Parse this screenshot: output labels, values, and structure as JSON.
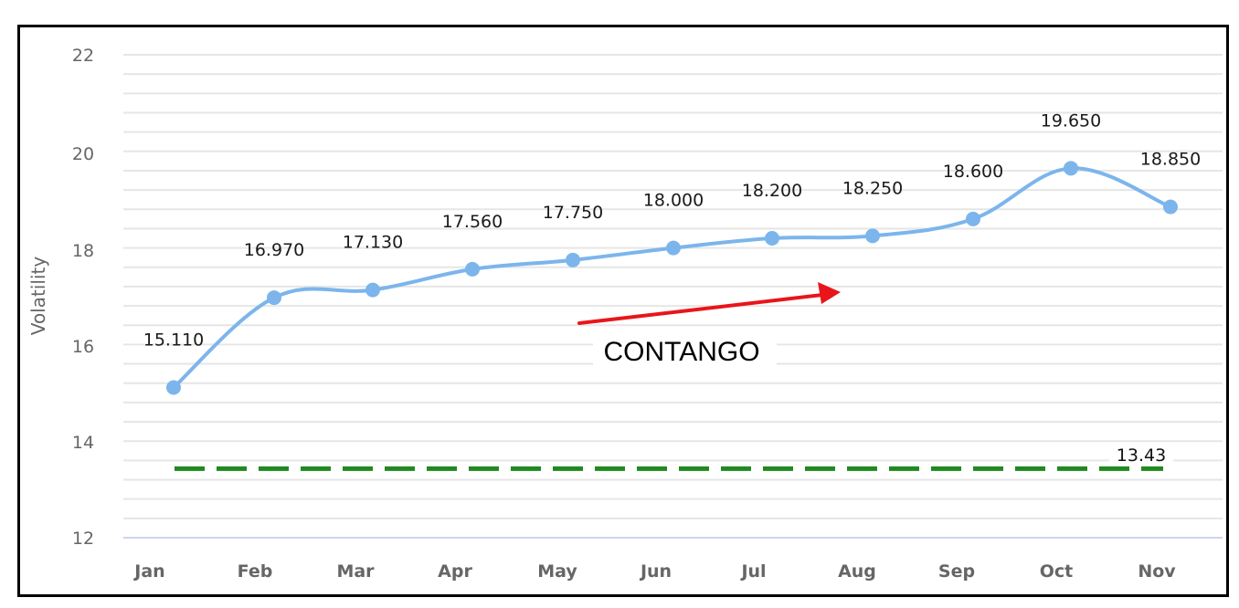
{
  "chart_data": {
    "type": "line",
    "title": "",
    "xlabel": "",
    "ylabel": "Volatility",
    "categories": [
      "Jan",
      "Feb",
      "Mar",
      "Apr",
      "May",
      "Jun",
      "Jul",
      "Aug",
      "Sep",
      "Oct",
      "Nov"
    ],
    "series": [
      {
        "name": "Volatility",
        "values": [
          15.11,
          16.97,
          17.13,
          17.56,
          17.75,
          18.0,
          18.2,
          18.25,
          18.6,
          19.65,
          18.85
        ],
        "data_labels": [
          "15.110",
          "16.970",
          "17.130",
          "17.560",
          "17.750",
          "18.000",
          "18.200",
          "18.250",
          "18.600",
          "19.650",
          "18.850"
        ],
        "color": "#7cb5ec",
        "smooth": true,
        "markers": true
      }
    ],
    "reference_lines": [
      {
        "value": 13.43,
        "label": "13.43",
        "color": "#1f8a1f",
        "style": "dashed"
      }
    ],
    "annotations": [
      {
        "text": "CONTANGO",
        "type": "text-box"
      },
      {
        "type": "arrow",
        "color": "#e8151b",
        "direction": "up-right"
      }
    ],
    "ylim": [
      12,
      22
    ],
    "yticks": [
      12,
      14,
      16,
      18,
      20,
      22
    ],
    "grid": true,
    "grid_step": 0.4,
    "legend": "none"
  },
  "axis": {
    "y_title": "Volatility",
    "y_ticks": [
      "22",
      "20",
      "18",
      "16",
      "14",
      "12"
    ],
    "x_ticks": [
      "Jan",
      "Feb",
      "Mar",
      "Apr",
      "May",
      "Jun",
      "Jul",
      "Aug",
      "Sep",
      "Oct",
      "Nov"
    ]
  },
  "annotation": {
    "text": "CONTANGO",
    "arrow_color": "#e8151b"
  },
  "reference": {
    "label": "13.43",
    "color": "#1f8a1f"
  },
  "colors": {
    "series": "#7cb5ec",
    "grid": "#e6e6e6",
    "x_axis_line": "#ccd6eb",
    "tick_text": "#666666",
    "frame": "#000000"
  }
}
